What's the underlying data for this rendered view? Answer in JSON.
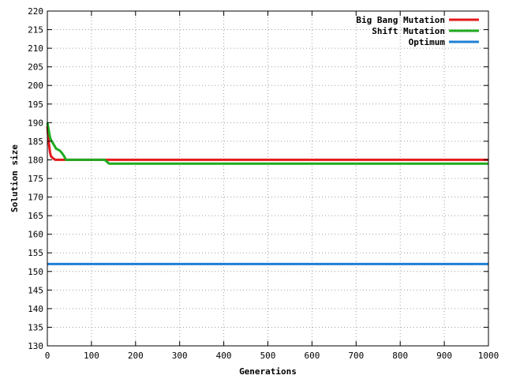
{
  "chart_data": {
    "type": "line",
    "title": "",
    "xlabel": "Generations",
    "ylabel": "Solution size",
    "xlim": [
      0,
      1000
    ],
    "ylim": [
      130,
      220
    ],
    "xticks": [
      0,
      100,
      200,
      300,
      400,
      500,
      600,
      700,
      800,
      900,
      1000
    ],
    "yticks": [
      130,
      135,
      140,
      145,
      150,
      155,
      160,
      165,
      170,
      175,
      180,
      185,
      190,
      195,
      200,
      205,
      210,
      215,
      220
    ],
    "grid": true,
    "legend_position": "top-right",
    "series": [
      {
        "name": "Big Bang Mutation",
        "color": "#e41a1c",
        "points": [
          [
            0,
            189
          ],
          [
            2,
            186
          ],
          [
            4,
            184
          ],
          [
            6,
            182
          ],
          [
            8,
            181
          ],
          [
            12,
            180.5
          ],
          [
            18,
            180
          ],
          [
            140,
            180
          ],
          [
            1000,
            180
          ]
        ]
      },
      {
        "name": "Shift Mutation",
        "color": "#1faa1f",
        "points": [
          [
            0,
            190
          ],
          [
            3,
            188
          ],
          [
            6,
            186
          ],
          [
            10,
            185
          ],
          [
            15,
            184
          ],
          [
            20,
            183
          ],
          [
            28,
            182.5
          ],
          [
            32,
            182
          ],
          [
            38,
            181
          ],
          [
            42,
            180
          ],
          [
            130,
            180
          ],
          [
            135,
            179.5
          ],
          [
            140,
            179
          ],
          [
            1000,
            179
          ]
        ]
      },
      {
        "name": "Optimum",
        "color": "#1f7fd4",
        "points": [
          [
            0,
            152
          ],
          [
            1000,
            152
          ]
        ]
      }
    ]
  }
}
